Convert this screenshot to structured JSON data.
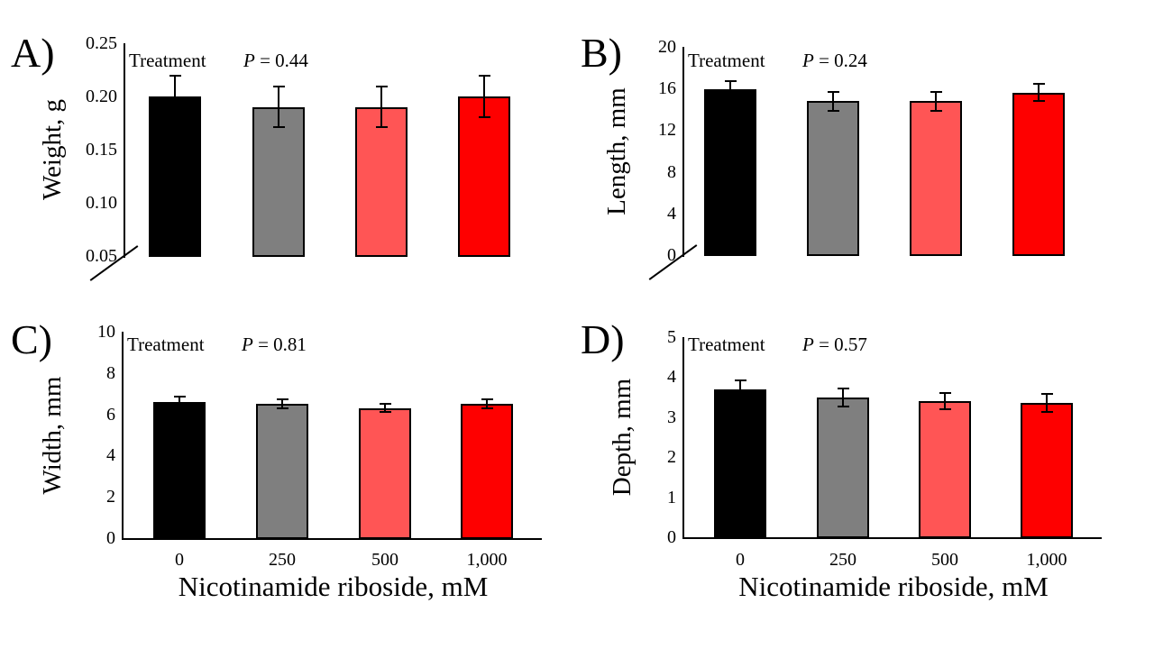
{
  "figure": {
    "background": "#ffffff",
    "bar_colors": [
      "#000000",
      "#7f7f7f",
      "#ff5555",
      "#fe0000"
    ],
    "bar_border_color": "#000000",
    "error_bar_color": "#000000",
    "x_axis_title": "Nicotinamide riboside, mM",
    "categories": [
      "0",
      "250",
      "500",
      "1,000"
    ]
  },
  "chart_data": [
    {
      "type": "bar",
      "panel_label": "A)",
      "ylabel": "Weight, g",
      "factor_label": "Treatment",
      "p_symbol": "P",
      "p_value_text": "= 0.44",
      "categories": [
        "0",
        "250",
        "500",
        "1,000"
      ],
      "values": [
        0.2,
        0.19,
        0.19,
        0.2
      ],
      "errors": [
        0.02,
        0.02,
        0.02,
        0.02
      ],
      "ylim": [
        0.05,
        0.25
      ],
      "yticks": [
        0.25,
        0.2,
        0.15,
        0.1,
        0.05
      ],
      "ytick_labels": [
        "0.25",
        "0.20",
        "0.15",
        "0.10",
        "0.05"
      ],
      "axis_break": true,
      "show_x_labels": false,
      "xlabel": ""
    },
    {
      "type": "bar",
      "panel_label": "B)",
      "ylabel": "Length, mm",
      "factor_label": "Treatment",
      "p_symbol": "P",
      "p_value_text": "= 0.24",
      "categories": [
        "0",
        "250",
        "500",
        "1,000"
      ],
      "values": [
        15.9,
        14.8,
        14.8,
        15.6
      ],
      "errors": [
        0.9,
        1.0,
        1.0,
        0.9
      ],
      "ylim": [
        0,
        20
      ],
      "yticks": [
        20,
        16,
        12,
        8,
        4,
        0
      ],
      "ytick_labels": [
        "20",
        "16",
        "12",
        "8",
        "4",
        "0"
      ],
      "axis_break": true,
      "show_x_labels": false,
      "xlabel": ""
    },
    {
      "type": "bar",
      "panel_label": "C)",
      "ylabel": "Width, mm",
      "factor_label": "Treatment",
      "p_symbol": "P",
      "p_value_text": "= 0.81",
      "categories": [
        "0",
        "250",
        "500",
        "1,000"
      ],
      "values": [
        6.6,
        6.5,
        6.3,
        6.5
      ],
      "errors": [
        0.3,
        0.25,
        0.25,
        0.25
      ],
      "ylim": [
        0,
        10
      ],
      "yticks": [
        10,
        8,
        6,
        4,
        2,
        0
      ],
      "ytick_labels": [
        "10",
        "8",
        "6",
        "4",
        "2",
        "0"
      ],
      "axis_break": false,
      "show_x_labels": true,
      "xlabel": "Nicotinamide riboside, mM"
    },
    {
      "type": "bar",
      "panel_label": "D)",
      "ylabel": "Depth, mm",
      "factor_label": "Treatment",
      "p_symbol": "P",
      "p_value_text": "= 0.57",
      "categories": [
        "0",
        "250",
        "500",
        "1,000"
      ],
      "values": [
        3.7,
        3.5,
        3.4,
        3.35
      ],
      "errors": [
        0.25,
        0.25,
        0.22,
        0.25
      ],
      "ylim": [
        0,
        5
      ],
      "yticks": [
        5,
        4,
        3,
        2,
        1,
        0
      ],
      "ytick_labels": [
        "5",
        "4",
        "3",
        "2",
        "1",
        "0"
      ],
      "axis_break": false,
      "show_x_labels": true,
      "xlabel": "Nicotinamide riboside, mM"
    }
  ]
}
